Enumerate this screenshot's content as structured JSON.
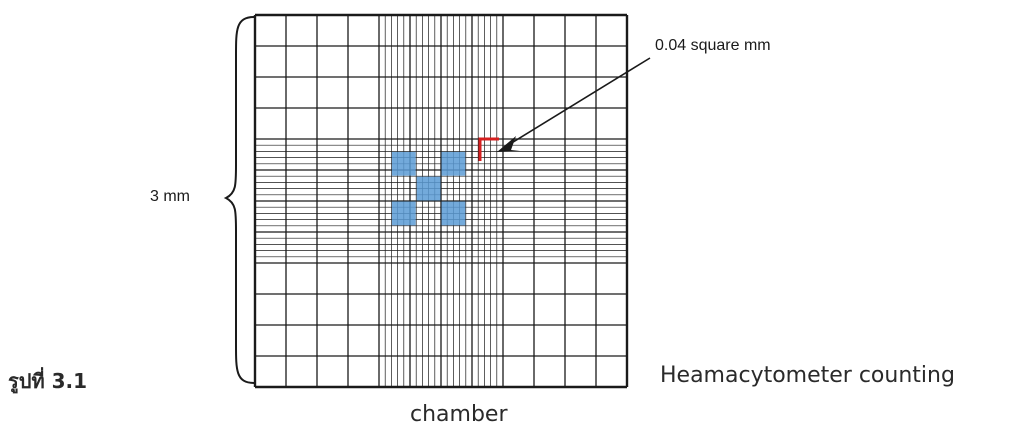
{
  "figure": {
    "number_label": "รูปที่ 3.1",
    "caption_line1": "Heamacytometer counting",
    "caption_line2": "chamber",
    "side_label": "3 mm",
    "callout_label": "0.04 square mm"
  },
  "colors": {
    "grid_line": "#1a1a1a",
    "highlight_square": "#5b9bd5",
    "callout_corner": "#d62020"
  }
}
